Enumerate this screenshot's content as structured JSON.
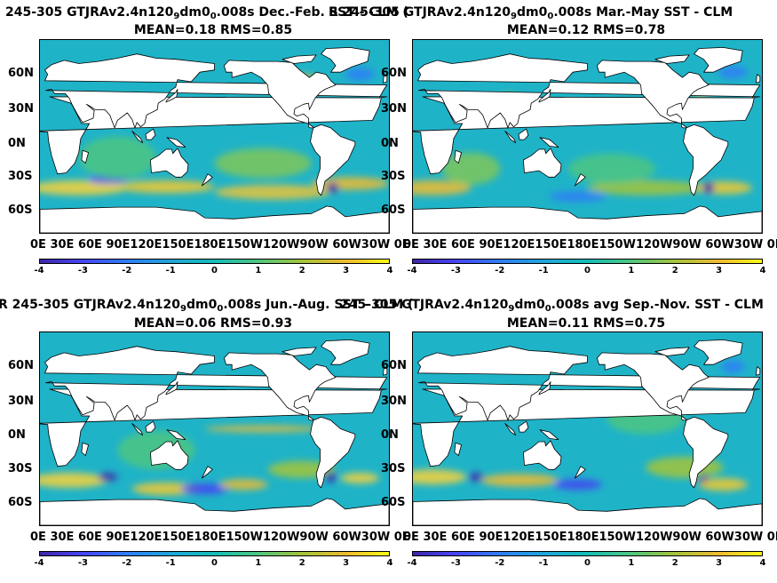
{
  "panels": [
    {
      "title_left": "245-305 GTJRAv2.4n120",
      "title_sub1": "9",
      "title_mid": "dm0",
      "title_sub2": "0",
      "title_right": ".008s  Dec.-Feb. SST - CLM (",
      "stats": "MEAN=0.18   RMS=0.85"
    },
    {
      "title_left": "R 245-305 GTJRAv2.4n120",
      "title_sub1": "9",
      "title_mid": "dm0",
      "title_sub2": "0",
      "title_right": ".008s Mar.-May SST - CLM",
      "stats": "MEAN=0.12   RMS=0.78"
    },
    {
      "title_left": "R 245-305 GTJRAv2.4n120",
      "title_sub1": "9",
      "title_mid": "dm0",
      "title_sub2": "0",
      "title_right": ".008s Jun.-Aug. SST - CLM (",
      "stats": "MEAN=0.06   RMS=0.93"
    },
    {
      "title_left": "245-305 GTJRAv2.4n120",
      "title_sub1": "9",
      "title_mid": "dm0",
      "title_sub2": "0",
      "title_right": ".008s avg Sep.-Nov. SST - CLM",
      "stats": "MEAN=0.11   RMS=0.75"
    }
  ],
  "overlap_fragments": [
    "Y",
    "CLM (",
    "TT",
    "(5C)",
    "5C)"
  ],
  "axes": {
    "y_ticks": [
      "60N",
      "30N",
      "0N",
      "30S",
      "60S"
    ],
    "x_ticks": [
      "0E",
      "30E",
      "60E",
      "90E",
      "120E",
      "150E",
      "180E",
      "150W",
      "120W",
      "90W",
      "60W",
      "30W",
      "0E"
    ],
    "x_tick_labels": "0E   30E  60E  90E120E150E180E150W120W90W 60W30W  0E",
    "colorbar_ticks": [
      "-4",
      "-3",
      "-2",
      "-1",
      "0",
      "1",
      "2",
      "3",
      "4"
    ]
  },
  "colors": {
    "ocean": "#1fb3c8",
    "land": "#ffffff",
    "coast": "#000000"
  },
  "chart_data": [
    {
      "type": "heatmap",
      "title": "245-305 GTJRAv2.4n120 9 dm0 0 .008s Dec.-Feb. SST - CLM",
      "mean": 0.18,
      "rms": 0.85,
      "colorbar_range": [
        -4,
        4
      ],
      "x_range": [
        "0E",
        "0E"
      ],
      "y_range": [
        "90S",
        "90N"
      ]
    },
    {
      "type": "heatmap",
      "title": "245-305 GTJRAv2.4n120 9 dm0 0 .008s Mar.-May SST - CLM",
      "mean": 0.12,
      "rms": 0.78,
      "colorbar_range": [
        -4,
        4
      ],
      "x_range": [
        "0E",
        "0E"
      ],
      "y_range": [
        "90S",
        "90N"
      ]
    },
    {
      "type": "heatmap",
      "title": "245-305 GTJRAv2.4n120 9 dm0 0 .008s Jun.-Aug. SST - CLM",
      "mean": 0.06,
      "rms": 0.93,
      "colorbar_range": [
        -4,
        4
      ],
      "x_range": [
        "0E",
        "0E"
      ],
      "y_range": [
        "90S",
        "90N"
      ]
    },
    {
      "type": "heatmap",
      "title": "245-305 GTJRAv2.4n120 9 dm0 0 .008s avg Sep.-Nov. SST - CLM",
      "mean": 0.11,
      "rms": 0.75,
      "colorbar_range": [
        -4,
        4
      ],
      "x_range": [
        "0E",
        "0E"
      ],
      "y_range": [
        "90S",
        "90N"
      ]
    }
  ]
}
